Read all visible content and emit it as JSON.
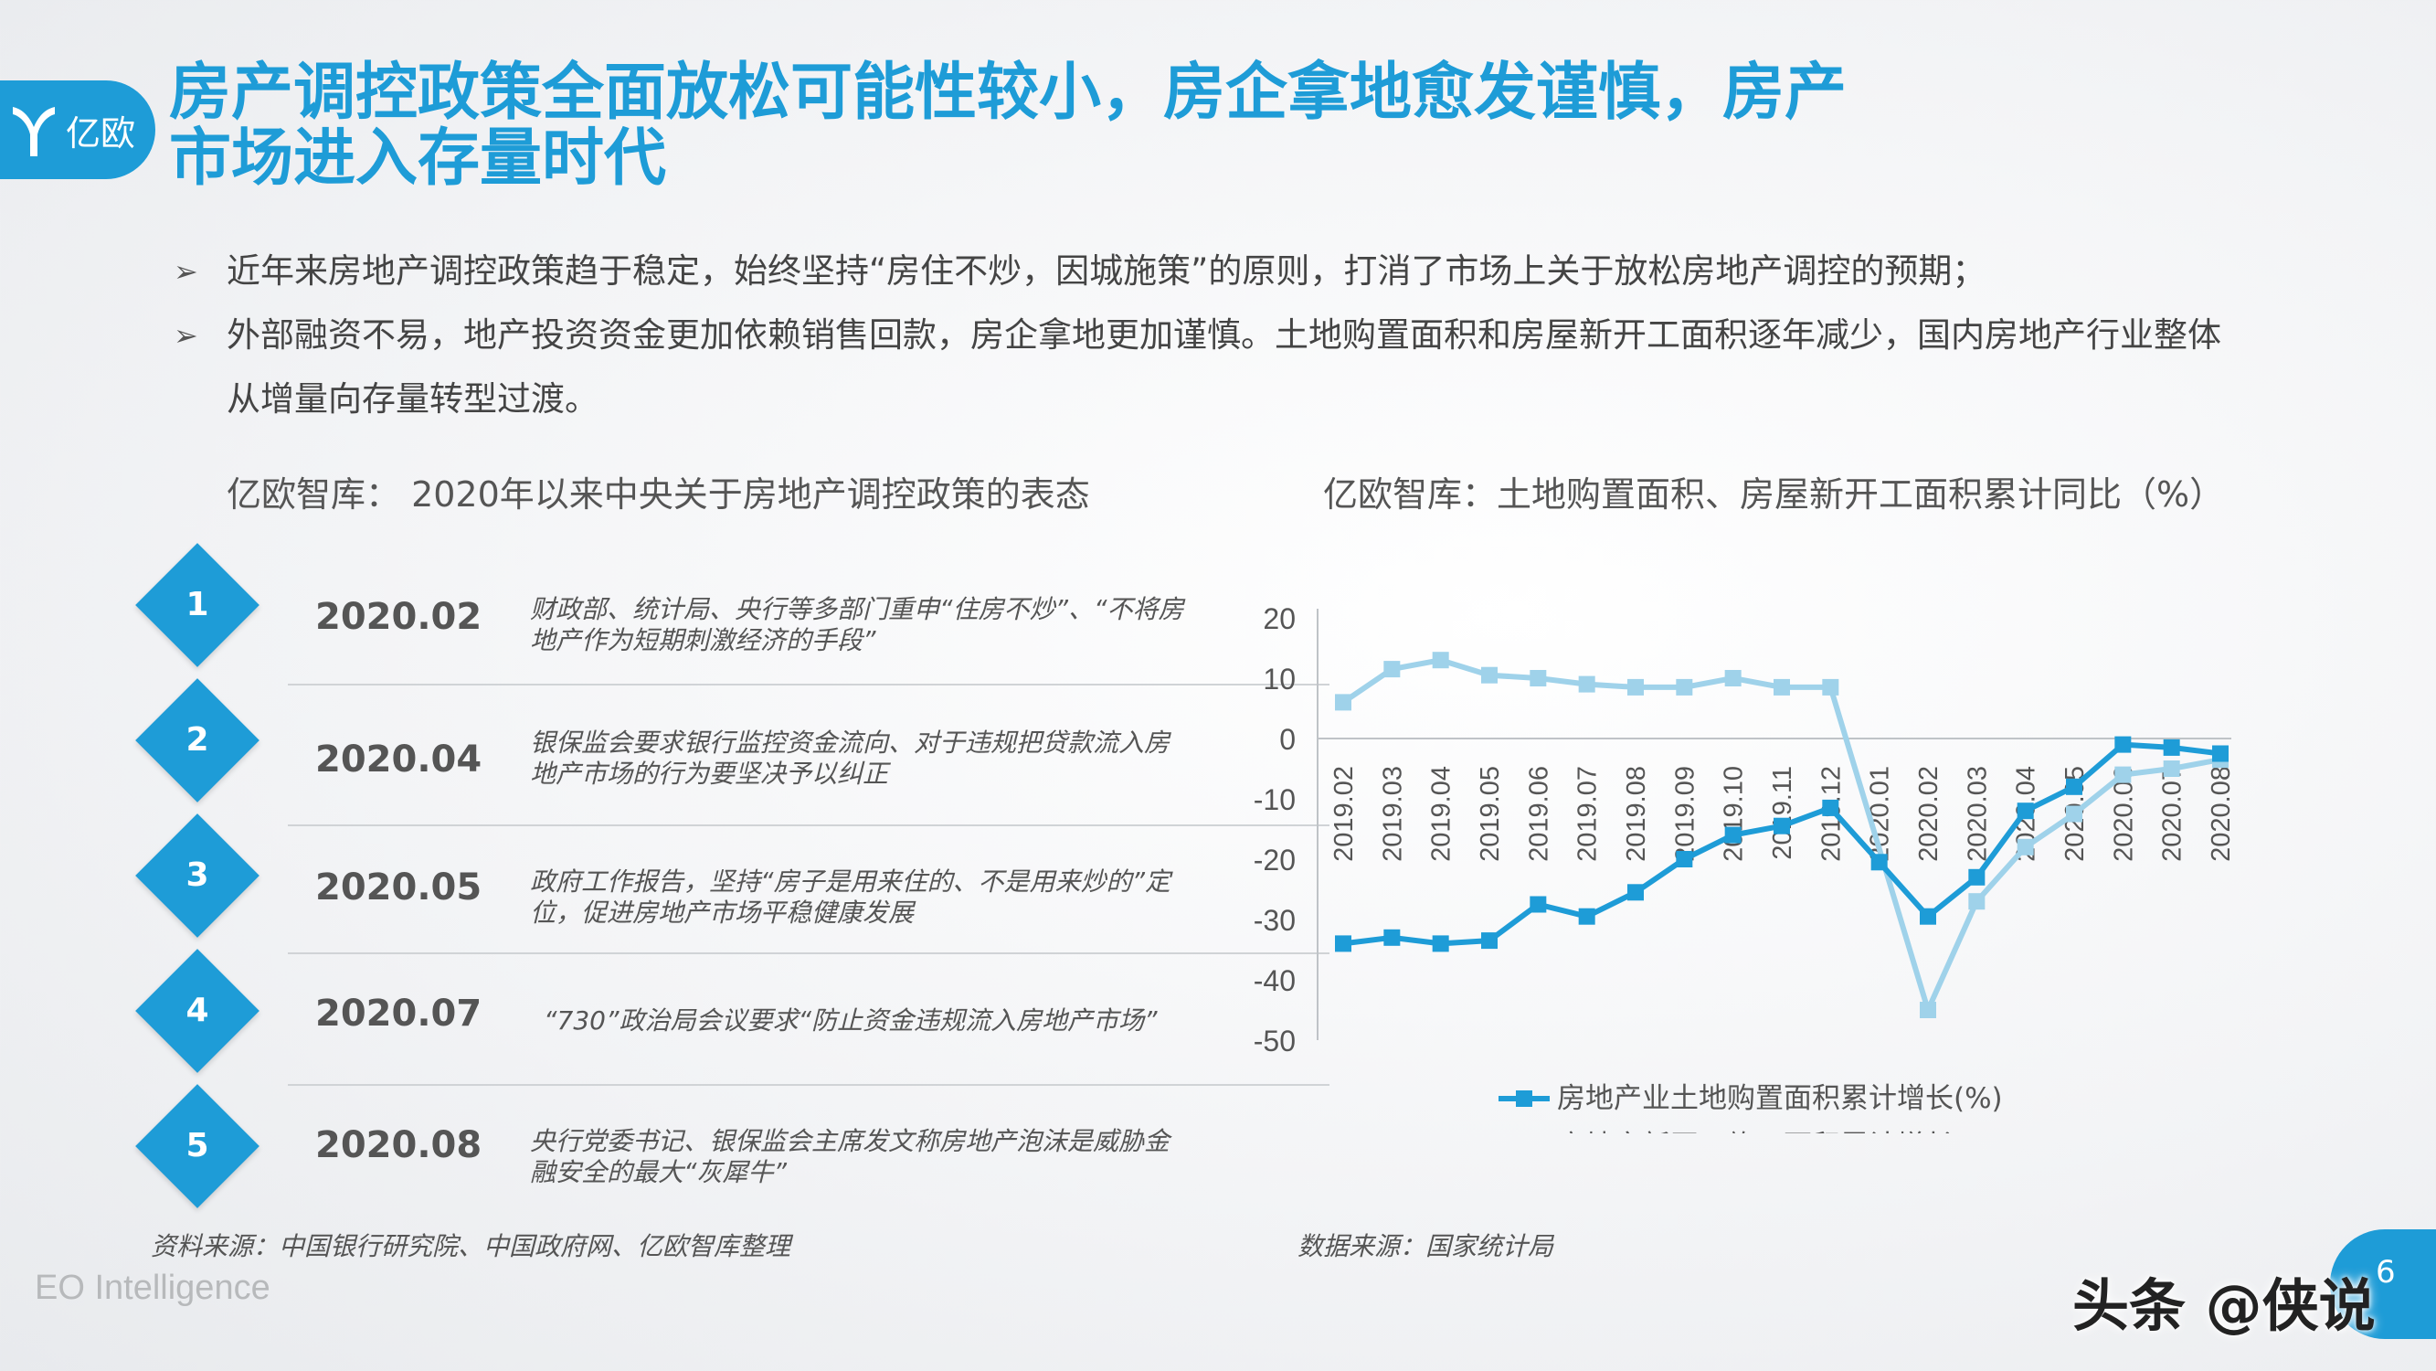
{
  "brand": {
    "logo_text": "亿欧",
    "footer": "EO Intelligence",
    "watermark": "头条 @侠说",
    "page_number": "6"
  },
  "colors": {
    "accent": "#1e9cd7",
    "series_land": "#1e9cd7",
    "series_construction": "#9fd2ea"
  },
  "title": "房产调控政策全面放松可能性较小，房企拿地愈发谨慎，房产市场进入存量时代",
  "bullets": [
    "近年来房地产调控政策趋于稳定，始终坚持“房住不炒，因城施策”的原则，打消了市场上关于放松房地产调控的预期；",
    "外部融资不易，地产投资资金更加依赖销售回款，房企拿地更加谨慎。土地购置面积和房屋新开工面积逐年减少，国内房地产行业整体从增量向存量转型过渡。"
  ],
  "left_section": {
    "title": "亿欧智库： 2020年以来中央关于房地产调控政策的表态",
    "items": [
      {
        "num": "1",
        "date": "2020.02",
        "desc": "财政部、统计局、央行等多部门重申“住房不炒”、“不将房地产作为短期刺激经济的手段”"
      },
      {
        "num": "2",
        "date": "2020.04",
        "desc": "银保监会要求银行监控资金流向、对于违规把贷款流入房地产市场的行为要坚决予以纠正"
      },
      {
        "num": "3",
        "date": "2020.05",
        "desc": "政府工作报告，坚持“房子是用来住的、不是用来炒的”定位，促进房地产市场平稳健康发展"
      },
      {
        "num": "4",
        "date": "2020.07",
        "desc": "“730”政治局会议要求“防止资金违规流入房地产市场”"
      },
      {
        "num": "5",
        "date": "2020.08",
        "desc": "央行党委书记、银保监会主席发文称房地产泡沫是威胁金融安全的最大“灰犀牛”"
      }
    ],
    "source": "资料来源：中国银行研究院、中国政府网、亿欧智库整理"
  },
  "right_section": {
    "title": "亿欧智库：土地购置面积、房屋新开工面积累计同比（%）",
    "source": "数据来源：国家统计局"
  },
  "chart_data": {
    "type": "line",
    "title": "亿欧智库：土地购置面积、房屋新开工面积累计同比（%）",
    "xlabel": "",
    "ylabel": "",
    "ylim": [
      -50,
      20
    ],
    "yticks": [
      "20",
      "10",
      "0",
      "-10",
      "-20",
      "-30",
      "-40",
      "-50"
    ],
    "grid": false,
    "legend": "bottom",
    "categories": [
      "2019.02",
      "2019.03",
      "2019.04",
      "2019.05",
      "2019.06",
      "2019.07",
      "2019.08",
      "2019.09",
      "2019.10",
      "2019.11",
      "2019.12",
      "2020.01",
      "2020.02",
      "2020.03",
      "2020.04",
      "2020.05",
      "2020.06",
      "2020.07",
      "2020.08"
    ],
    "series": [
      {
        "name": "房地产业土地购置面积累计增长(%)",
        "marker": "square",
        "color": "#1e9cd7",
        "values": [
          -34,
          -33,
          -34,
          -33.5,
          -27.5,
          -29.5,
          -25.5,
          -20,
          -16,
          -14.5,
          -11.5,
          -20.5,
          -29.5,
          -23,
          -12,
          -8,
          -1,
          -1.5,
          -2.5
        ]
      },
      {
        "name": "房地产新开工施工面积累计增长(%)",
        "marker": "square",
        "color": "#9fd2ea",
        "values": [
          6,
          11.5,
          13,
          10.5,
          10,
          9,
          8.5,
          8.5,
          10,
          8.5,
          8.5,
          null,
          -45,
          -27,
          -18,
          -12.5,
          -6,
          -5,
          -3.5
        ]
      }
    ]
  }
}
